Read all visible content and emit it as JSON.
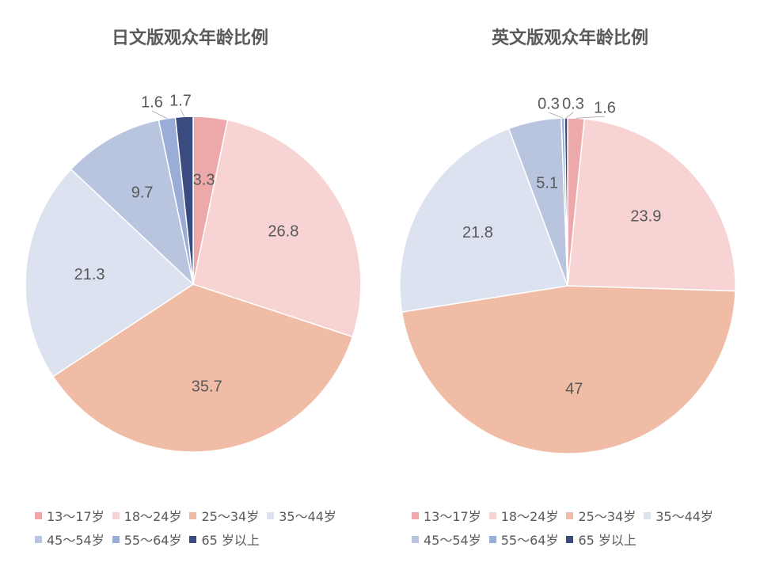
{
  "chart_data": [
    {
      "type": "pie",
      "title": "日文版观众年龄比例",
      "categories": [
        "13～17岁",
        "18～24岁",
        "25～34岁",
        "35～44岁",
        "45～54岁",
        "55～64岁",
        "65 岁以上"
      ],
      "values": [
        3.3,
        26.8,
        35.7,
        21.3,
        9.7,
        1.6,
        1.7
      ],
      "legend_position": "bottom"
    },
    {
      "type": "pie",
      "title": "英文版观众年龄比例",
      "categories": [
        "13～17岁",
        "18～24岁",
        "25～34岁",
        "35～44岁",
        "45～54岁",
        "55～64岁",
        "65 岁以上"
      ],
      "values": [
        1.6,
        23.9,
        47,
        21.8,
        5.1,
        0.3,
        0.3
      ],
      "legend_position": "bottom"
    }
  ],
  "colors": [
    "#eda8aa",
    "#f7d3d4",
    "#f0bca5",
    "#dde2f0",
    "#b9c5df",
    "#9aadd6",
    "#3a4b7f"
  ],
  "label_color": "#595959"
}
